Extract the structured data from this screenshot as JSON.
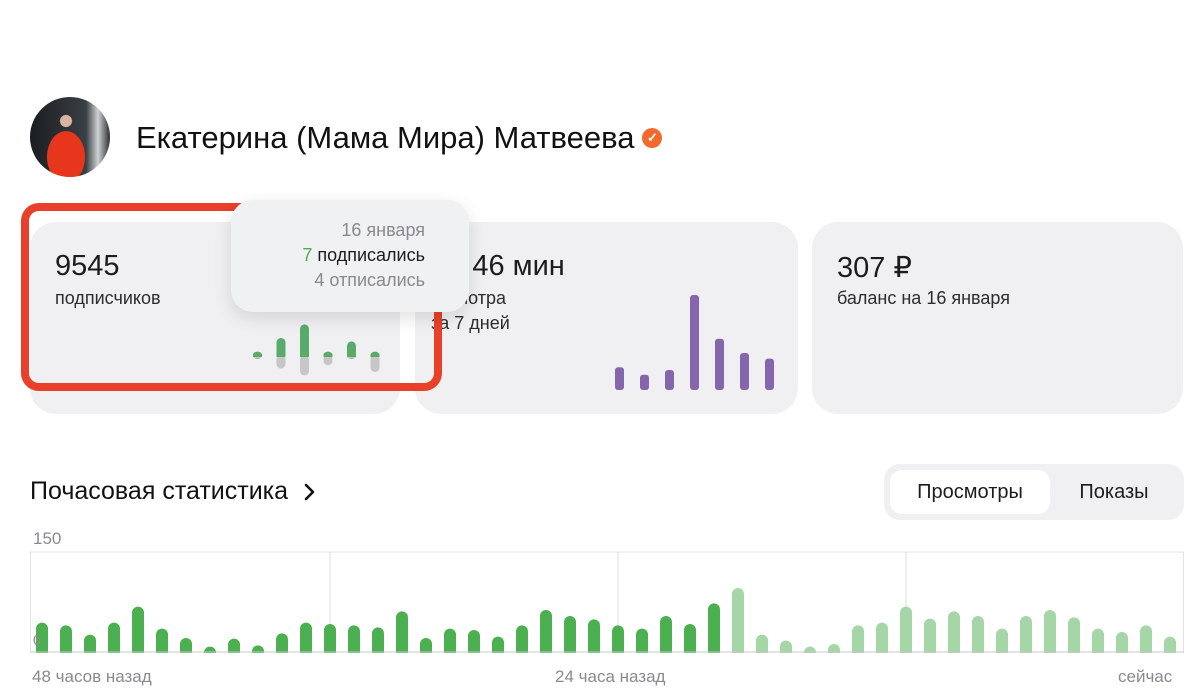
{
  "profile": {
    "name": "Екатерина (Мама Мира) Матвеева",
    "verified_icon": "verified-check-icon"
  },
  "cards": {
    "subscribers": {
      "value": "9545",
      "label": "подписчиков",
      "mini_chart": {
        "subscribed": [
          1,
          5,
          9,
          1,
          4,
          1,
          7
        ],
        "unsubscribed": [
          1,
          4,
          6,
          3,
          1,
          5,
          4
        ],
        "colors": {
          "subscribed": "#5aab6a",
          "unsubscribed": "#c6c6c8",
          "latest": "#78c98a"
        }
      }
    },
    "views": {
      "value": "3 ч 46 мин",
      "label": "просмотра",
      "period": "за 7 дней",
      "mini_chart": {
        "values_relative_percent": [
          24,
          16,
          21,
          100,
          54,
          39,
          33
        ],
        "color": "#8566ad"
      }
    },
    "balance": {
      "value": "307 ₽",
      "label": "баланс на 16 января"
    }
  },
  "tooltip": {
    "date": "16 января",
    "subscribed_count": "7",
    "subscribed_label": "подписались",
    "unsubscribed_count": "4",
    "unsubscribed_label": "отписались"
  },
  "highlight_color": "#e8402a",
  "hourly": {
    "title": "Почасовая статистика",
    "chevron_icon": "chevron-right-icon",
    "tabs": [
      {
        "label": "Просмотры",
        "active": true
      },
      {
        "label": "Показы",
        "active": false
      }
    ]
  },
  "chart_data": {
    "type": "bar",
    "ylim": [
      0,
      150
    ],
    "y_ticks": [
      "150",
      "0"
    ],
    "x_labels": [
      "48 часов назад",
      "24 часа назад",
      "сейчас"
    ],
    "grid": "vertical",
    "colors": {
      "past": "#4caf50",
      "recent": "#a5d6a7"
    },
    "series": [
      {
        "values": [
          44,
          40,
          26,
          44,
          68,
          35,
          21,
          8,
          20,
          10,
          28,
          44,
          42,
          40,
          37,
          61,
          21,
          35,
          33,
          23,
          40,
          63,
          54,
          49,
          40,
          35,
          54,
          42,
          73
        ]
      },
      {
        "values": [
          96,
          26,
          17,
          8,
          12,
          40,
          44,
          68,
          50,
          61,
          54,
          35,
          54,
          63,
          52,
          35,
          30,
          40,
          23
        ]
      }
    ]
  }
}
